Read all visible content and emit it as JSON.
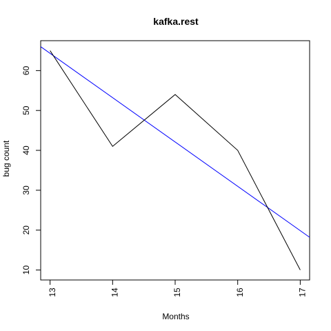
{
  "chart_data": {
    "type": "line",
    "title": "kafka.rest",
    "xlabel": "Months",
    "ylabel": "bug count",
    "x": [
      13,
      14,
      15,
      16,
      17
    ],
    "xlim": [
      12.85,
      17.15
    ],
    "ylim": [
      7.5,
      67.5
    ],
    "xticks": [
      "13",
      "14",
      "15",
      "16",
      "17"
    ],
    "yticks": [
      "10",
      "20",
      "30",
      "40",
      "50",
      "60"
    ],
    "grid": false,
    "legend": "none",
    "series": [
      {
        "values": [
          65,
          41,
          54,
          40,
          10
        ],
        "color": "#000000"
      }
    ],
    "trendline": {
      "x": [
        12.85,
        17.15
      ],
      "y": [
        66,
        18.2
      ],
      "color": "#0000ff"
    }
  }
}
